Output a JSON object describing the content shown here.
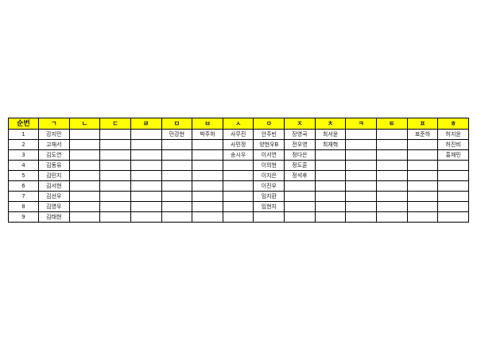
{
  "colors": {
    "header_bg": "#ffff00",
    "border": "#000000"
  },
  "headers": [
    "순번",
    "ㄱ",
    "ㄴ",
    "ㄷ",
    "ㄹ",
    "ㅁ",
    "ㅂ",
    "ㅅ",
    "ㅇ",
    "ㅈ",
    "ㅊ",
    "ㅋ",
    "ㅌ",
    "ㅍ",
    "ㅎ"
  ],
  "rows": [
    [
      "1",
      "강지민",
      "",
      "",
      "",
      "민강현",
      "박주하",
      "사무진",
      "안주빈",
      "장영국",
      "최서윤",
      "",
      "",
      "표준하",
      "허지윤"
    ],
    [
      "2",
      "고재서",
      "",
      "",
      "",
      "",
      "",
      "사민정",
      "양현우B",
      "전우영",
      "최재혁",
      "",
      "",
      "",
      "허진비"
    ],
    [
      "3",
      "김도연",
      "",
      "",
      "",
      "",
      "",
      "송시우",
      "이서연",
      "정다은",
      "",
      "",
      "",
      "",
      "홍재민"
    ],
    [
      "4",
      "김동유",
      "",
      "",
      "",
      "",
      "",
      "",
      "이의현",
      "정도훈",
      "",
      "",
      "",
      "",
      ""
    ],
    [
      "5",
      "김민지",
      "",
      "",
      "",
      "",
      "",
      "",
      "이지은",
      "정석후",
      "",
      "",
      "",
      "",
      ""
    ],
    [
      "6",
      "김서현",
      "",
      "",
      "",
      "",
      "",
      "",
      "이진우",
      "",
      "",
      "",
      "",
      "",
      ""
    ],
    [
      "7",
      "김선우",
      "",
      "",
      "",
      "",
      "",
      "",
      "임지환",
      "",
      "",
      "",
      "",
      "",
      ""
    ],
    [
      "8",
      "김영우",
      "",
      "",
      "",
      "",
      "",
      "",
      "임현지",
      "",
      "",
      "",
      "",
      "",
      ""
    ],
    [
      "9",
      "김태현",
      "",
      "",
      "",
      "",
      "",
      "",
      "",
      "",
      "",
      "",
      "",
      "",
      ""
    ]
  ]
}
